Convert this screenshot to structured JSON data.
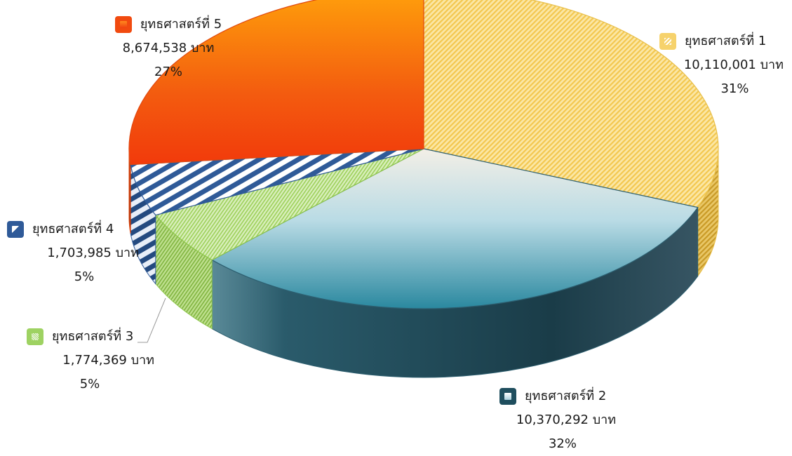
{
  "chart_data": {
    "type": "pie",
    "title": "",
    "currency_unit": "บาท",
    "slices": [
      {
        "name": "ยุทธศาสตร์ที่ 1",
        "value": 10110001,
        "value_text": "10,110,001 บาท",
        "percent_text": "31%",
        "color": "#f6cf62"
      },
      {
        "name": "ยุทธศาสตร์ที่ 2",
        "value": 10370292,
        "value_text": "10,370,292 บาท",
        "percent_text": "32%",
        "color": "#2a6a80"
      },
      {
        "name": "ยุทธศาสตร์ที่ 3",
        "value": 1774369,
        "value_text": "1,774,369 บาท",
        "percent_text": "5%",
        "color": "#a9d86c"
      },
      {
        "name": "ยุทธศาสตร์ที่ 4",
        "value": 1703985,
        "value_text": "1,703,985 บาท",
        "percent_text": "5%",
        "color": "#2f5a98"
      },
      {
        "name": "ยุทธศาสตร์ที่ 5",
        "value": 8674538,
        "value_text": "8,674,538 บาท",
        "percent_text": "27%",
        "color": "#f24a10"
      }
    ]
  }
}
